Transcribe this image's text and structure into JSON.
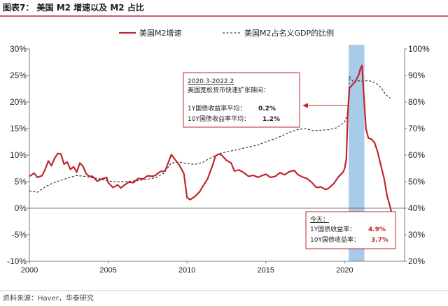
{
  "colors": {
    "m2_line": "#c0262d",
    "gdp_line": "#222222",
    "highlight": "#a9cbea",
    "title_rule": "#c0262d",
    "box_border": "#c0262d",
    "red_value": "#c0262d",
    "dark_value": "#222222"
  },
  "chart_data": {
    "type": "line",
    "title": "图表7：  美国 M2 增速以及 M2 占比",
    "source": "资料来源：Haver，华泰研究",
    "legend": [
      "美国M2增速",
      "美国M2占名义GDP的比例"
    ],
    "legend_position": "top-center",
    "x_ticks": [
      "2000",
      "2005",
      "2010",
      "2015",
      "2020"
    ],
    "xlim": [
      2000,
      2023.8
    ],
    "y_left": {
      "ticks": [
        "30%",
        "25%",
        "20%",
        "15%",
        "10%",
        "5%",
        "0%",
        "-5%",
        "-10%"
      ],
      "range": [
        -10,
        30
      ]
    },
    "y_right": {
      "ticks": [
        "100%",
        "90%",
        "80%",
        "70%",
        "60%",
        "50%",
        "40%",
        "30%",
        "20%"
      ],
      "range": [
        20,
        100
      ]
    },
    "highlight_period": {
      "from": 2020.25,
      "to": 2021.25
    },
    "series": [
      {
        "name": "美国M2增速",
        "axis": "left",
        "points": [
          [
            2000.0,
            6.0
          ],
          [
            2000.3,
            6.6
          ],
          [
            2000.5,
            5.8
          ],
          [
            2000.8,
            6.1
          ],
          [
            2001.0,
            7.3
          ],
          [
            2001.2,
            8.9
          ],
          [
            2001.4,
            8.0
          ],
          [
            2001.6,
            9.4
          ],
          [
            2001.8,
            10.3
          ],
          [
            2002.0,
            10.2
          ],
          [
            2002.2,
            8.3
          ],
          [
            2002.4,
            8.7
          ],
          [
            2002.6,
            7.3
          ],
          [
            2002.8,
            7.8
          ],
          [
            2003.0,
            6.8
          ],
          [
            2003.2,
            8.5
          ],
          [
            2003.4,
            7.9
          ],
          [
            2003.6,
            6.5
          ],
          [
            2003.8,
            6.0
          ],
          [
            2004.0,
            6.0
          ],
          [
            2004.3,
            5.1
          ],
          [
            2004.6,
            5.5
          ],
          [
            2004.9,
            5.8
          ],
          [
            2005.0,
            4.8
          ],
          [
            2005.3,
            3.9
          ],
          [
            2005.6,
            4.4
          ],
          [
            2005.8,
            3.8
          ],
          [
            2006.0,
            4.3
          ],
          [
            2006.3,
            4.9
          ],
          [
            2006.6,
            4.8
          ],
          [
            2006.9,
            5.6
          ],
          [
            2007.2,
            5.5
          ],
          [
            2007.5,
            6.1
          ],
          [
            2007.8,
            6.0
          ],
          [
            2008.0,
            6.2
          ],
          [
            2008.3,
            6.9
          ],
          [
            2008.6,
            7.0
          ],
          [
            2008.8,
            8.5
          ],
          [
            2009.0,
            10.1
          ],
          [
            2009.2,
            9.3
          ],
          [
            2009.5,
            8.2
          ],
          [
            2009.8,
            6.5
          ],
          [
            2010.0,
            2.0
          ],
          [
            2010.2,
            1.6
          ],
          [
            2010.5,
            2.2
          ],
          [
            2010.8,
            3.1
          ],
          [
            2011.0,
            4.1
          ],
          [
            2011.3,
            5.5
          ],
          [
            2011.6,
            7.9
          ],
          [
            2011.8,
            9.8
          ],
          [
            2012.0,
            10.2
          ],
          [
            2012.2,
            10.0
          ],
          [
            2012.5,
            9.0
          ],
          [
            2012.8,
            8.5
          ],
          [
            2013.0,
            7.0
          ],
          [
            2013.3,
            7.2
          ],
          [
            2013.6,
            6.7
          ],
          [
            2013.9,
            6.0
          ],
          [
            2014.2,
            6.2
          ],
          [
            2014.5,
            5.8
          ],
          [
            2014.8,
            6.2
          ],
          [
            2015.0,
            6.4
          ],
          [
            2015.3,
            5.8
          ],
          [
            2015.6,
            6.0
          ],
          [
            2015.9,
            6.7
          ],
          [
            2016.2,
            6.3
          ],
          [
            2016.5,
            6.9
          ],
          [
            2016.8,
            7.1
          ],
          [
            2017.0,
            6.4
          ],
          [
            2017.3,
            5.9
          ],
          [
            2017.6,
            5.6
          ],
          [
            2017.9,
            4.9
          ],
          [
            2018.2,
            3.9
          ],
          [
            2018.5,
            4.0
          ],
          [
            2018.8,
            3.5
          ],
          [
            2019.0,
            3.8
          ],
          [
            2019.3,
            4.6
          ],
          [
            2019.6,
            5.9
          ],
          [
            2019.9,
            6.8
          ],
          [
            2020.0,
            7.5
          ],
          [
            2020.1,
            9.2
          ],
          [
            2020.2,
            18.0
          ],
          [
            2020.3,
            22.6
          ],
          [
            2020.5,
            23.3
          ],
          [
            2020.7,
            24.0
          ],
          [
            2020.9,
            25.2
          ],
          [
            2021.0,
            26.3
          ],
          [
            2021.1,
            26.9
          ],
          [
            2021.2,
            22.0
          ],
          [
            2021.35,
            15.0
          ],
          [
            2021.5,
            13.2
          ],
          [
            2021.7,
            13.0
          ],
          [
            2021.9,
            12.3
          ],
          [
            2022.1,
            10.5
          ],
          [
            2022.3,
            8.0
          ],
          [
            2022.5,
            5.6
          ],
          [
            2022.7,
            2.2
          ],
          [
            2022.9,
            0.1
          ],
          [
            2023.0,
            -1.3
          ]
        ]
      },
      {
        "name": "美国M2占名义GDP的比例",
        "axis": "right",
        "points": [
          [
            2000.0,
            46.5
          ],
          [
            2000.5,
            46.0
          ],
          [
            2001.0,
            48.0
          ],
          [
            2001.5,
            49.5
          ],
          [
            2002.0,
            50.5
          ],
          [
            2002.5,
            51.5
          ],
          [
            2003.0,
            52.3
          ],
          [
            2003.5,
            52.0
          ],
          [
            2004.0,
            51.5
          ],
          [
            2004.5,
            51.0
          ],
          [
            2005.0,
            50.2
          ],
          [
            2005.5,
            49.9
          ],
          [
            2006.0,
            50.0
          ],
          [
            2006.5,
            50.2
          ],
          [
            2007.0,
            50.5
          ],
          [
            2007.5,
            50.9
          ],
          [
            2008.0,
            51.5
          ],
          [
            2008.5,
            53.0
          ],
          [
            2009.0,
            57.0
          ],
          [
            2009.5,
            57.4
          ],
          [
            2010.0,
            56.8
          ],
          [
            2010.5,
            56.5
          ],
          [
            2011.0,
            57.3
          ],
          [
            2011.5,
            59.0
          ],
          [
            2012.0,
            60.5
          ],
          [
            2012.5,
            61.2
          ],
          [
            2013.0,
            61.8
          ],
          [
            2013.5,
            62.5
          ],
          [
            2014.0,
            63.2
          ],
          [
            2014.5,
            63.8
          ],
          [
            2015.0,
            65.0
          ],
          [
            2015.5,
            66.0
          ],
          [
            2016.0,
            67.2
          ],
          [
            2016.5,
            68.6
          ],
          [
            2017.0,
            69.6
          ],
          [
            2017.5,
            70.0
          ],
          [
            2018.0,
            69.2
          ],
          [
            2018.5,
            69.4
          ],
          [
            2019.0,
            69.6
          ],
          [
            2019.5,
            70.3
          ],
          [
            2020.0,
            72.5
          ],
          [
            2020.2,
            76.0
          ],
          [
            2020.3,
            89.5
          ],
          [
            2020.6,
            87.3
          ],
          [
            2020.9,
            88.0
          ],
          [
            2021.2,
            87.8
          ],
          [
            2021.5,
            88.1
          ],
          [
            2021.8,
            87.5
          ],
          [
            2022.0,
            87.0
          ],
          [
            2022.3,
            85.5
          ],
          [
            2022.6,
            82.8
          ],
          [
            2022.9,
            81.4
          ]
        ]
      }
    ],
    "annotations": [
      {
        "title": "2020.3-2022.2",
        "subtitle": "美国宽松货币快速扩张期间：",
        "rows": [
          {
            "label": "1Y国债收益率平均：",
            "value": "0.2%"
          },
          {
            "label": "10Y国债收益率平均：",
            "value": "1.2%"
          }
        ],
        "value_color": "dark"
      },
      {
        "title": "今天：",
        "rows": [
          {
            "label": "1Y国债收益率：",
            "value": "4.9%"
          },
          {
            "label": "10Y国债收益率：",
            "value": "3.7%"
          }
        ],
        "value_color": "red"
      }
    ]
  }
}
